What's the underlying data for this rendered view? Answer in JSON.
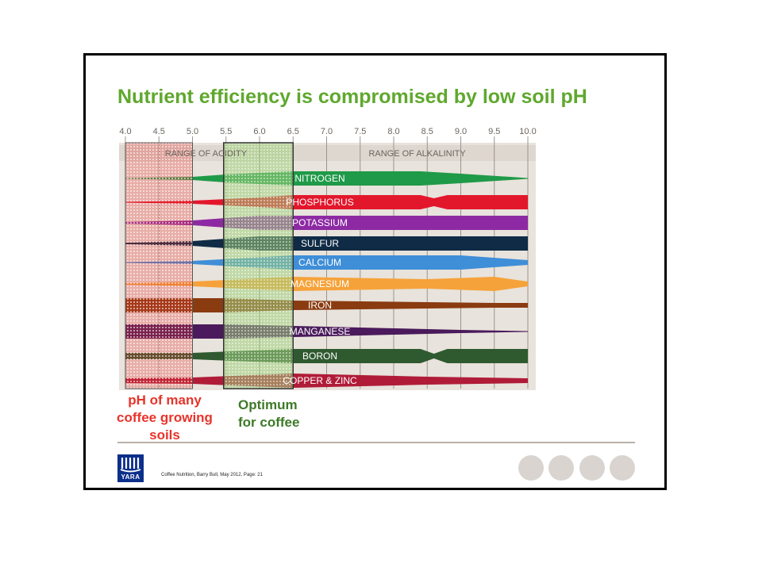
{
  "slide": {
    "title": "Nutrient efficiency is compromised by low soil pH",
    "annotation_left": [
      "pH of many",
      "coffee growing",
      "soils"
    ],
    "annotation_right": [
      "Optimum",
      "for coffee"
    ],
    "footer": "Coffee Nutrition,   Barry Bull,   May 2012,   Page: 21",
    "logo_text": "YARA",
    "colors": {
      "title": "#5fa82e",
      "red_note": "#e8332a",
      "green_note": "#3d7a27"
    }
  },
  "chart_data": {
    "type": "diagram",
    "x_ticks": [
      "4.0",
      "4.5",
      "5.0",
      "5.5",
      "6.0",
      "6.5",
      "7.0",
      "7.5",
      "8.0",
      "8.5",
      "9.0",
      "9.5",
      "10.0"
    ],
    "range_labels": {
      "acidity": "RANGE OF ACIDITY",
      "alkalinity": "RANGE OF ALKALINITY"
    },
    "highlight_regions": [
      {
        "from_ph": 4.0,
        "to_ph": 5.0,
        "color": "#e8332a"
      },
      {
        "from_ph": 5.5,
        "to_ph": 6.5,
        "color": "#6aa84f"
      }
    ],
    "nutrients": [
      {
        "name": "NITROGEN",
        "color": "#1f9a48"
      },
      {
        "name": "PHOSPHORUS",
        "color": "#e3172c"
      },
      {
        "name": "POTASSIUM",
        "color": "#8d2aa3"
      },
      {
        "name": "SULFUR",
        "color": "#0f2b45"
      },
      {
        "name": "CALCIUM",
        "color": "#3f8ed8"
      },
      {
        "name": "MAGNESIUM",
        "color": "#f6a23a"
      },
      {
        "name": "IRON",
        "color": "#8a3b10"
      },
      {
        "name": "MANGANESE",
        "color": "#4a1a5c"
      },
      {
        "name": "BORON",
        "color": "#2f5a30"
      },
      {
        "name": "COPPER & ZINC",
        "color": "#b01c38"
      }
    ]
  }
}
